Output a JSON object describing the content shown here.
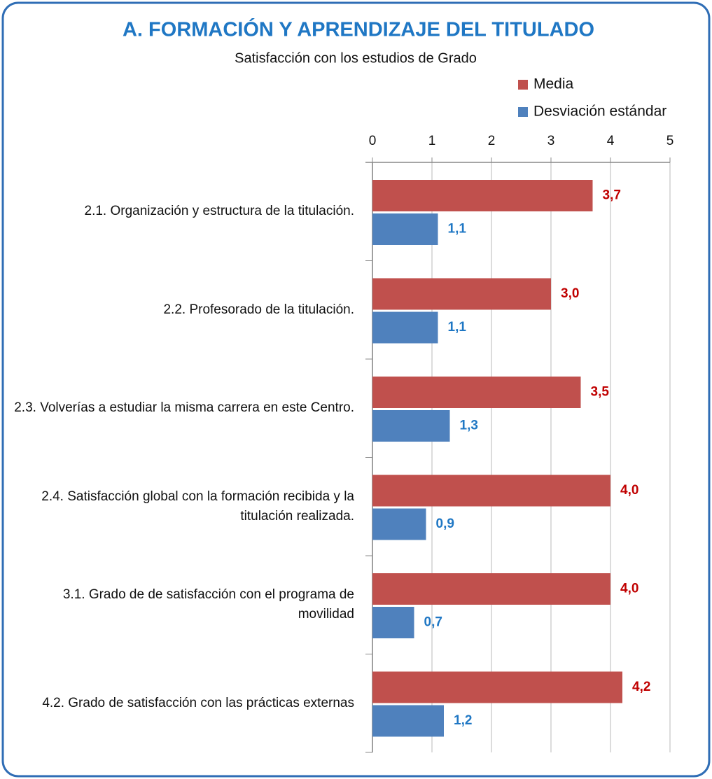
{
  "chart_data": {
    "type": "hbar",
    "title": "A.  FORMACIÓN Y APRENDIZAJE DEL TITULADO",
    "subtitle": "Satisfacción con los estudios de Grado",
    "categories": [
      "2.1. Organización y estructura de la titulación.",
      "2.2. Profesorado de la titulación.",
      "2.3. Volverías a estudiar la misma carrera en este Centro.",
      "2.4. Satisfacción global con la formación recibida y la titulación realizada.",
      "3.1. Grado de de satisfacción con el programa de movilidad",
      "4.2. Grado de satisfacción con las prácticas externas"
    ],
    "series": [
      {
        "name": "Media",
        "color": "#c0504d",
        "label_color": "#c00000",
        "values": [
          3.7,
          3.0,
          3.5,
          4.0,
          4.0,
          4.2
        ],
        "value_labels": [
          "3,7",
          "3,0",
          "3,5",
          "4,0",
          "4,0",
          "4,2"
        ]
      },
      {
        "name": "Desviación estándar",
        "color": "#4f81bd",
        "label_color": "#1f77c4",
        "values": [
          1.1,
          1.1,
          1.3,
          0.9,
          0.7,
          1.2
        ],
        "value_labels": [
          "1,1",
          "1,1",
          "1,3",
          "0,9",
          "0,7",
          "1,2"
        ]
      }
    ],
    "xlim": [
      0,
      5
    ],
    "xticks": [
      0,
      1,
      2,
      3,
      4,
      5
    ],
    "grid": true,
    "legend": "top-right"
  }
}
